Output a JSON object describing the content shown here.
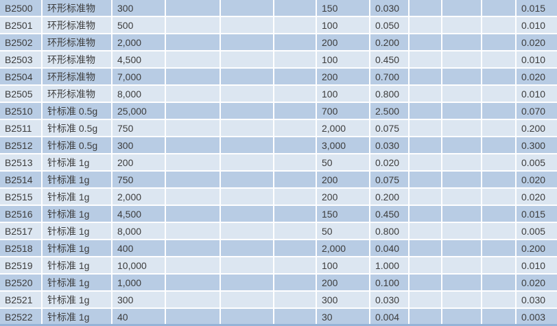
{
  "table": {
    "colors": {
      "row_band_dark": "#b8cce4",
      "row_band_light": "#dce6f1",
      "grid_line": "#ffffff",
      "bottom_border": "#95b3d7",
      "text": "#3c3c3c"
    },
    "rows": [
      [
        "B2500",
        "环形标准物",
        "300",
        "",
        "",
        "",
        "150",
        "0.030",
        "",
        "",
        "",
        "0.015"
      ],
      [
        "B2501",
        "环形标准物",
        "500",
        "",
        "",
        "",
        "100",
        "0.050",
        "",
        "",
        "",
        "0.010"
      ],
      [
        "B2502",
        "环形标准物",
        "2,000",
        "",
        "",
        "",
        "200",
        "0.200",
        "",
        "",
        "",
        "0.020"
      ],
      [
        "B2503",
        "环形标准物",
        "4,500",
        "",
        "",
        "",
        "100",
        "0.450",
        "",
        "",
        "",
        "0.010"
      ],
      [
        "B2504",
        "环形标准物",
        "7,000",
        "",
        "",
        "",
        "200",
        "0.700",
        "",
        "",
        "",
        "0.020"
      ],
      [
        "B2505",
        "环形标准物",
        "8,000",
        "",
        "",
        "",
        "100",
        "0.800",
        "",
        "",
        "",
        "0.010"
      ],
      [
        "B2510",
        "针标准 0.5g",
        "25,000",
        "",
        "",
        "",
        "700",
        "2.500",
        "",
        "",
        "",
        "0.070"
      ],
      [
        "B2511",
        "针标准 0.5g",
        "750",
        "",
        "",
        "",
        "2,000",
        "0.075",
        "",
        "",
        "",
        "0.200"
      ],
      [
        "B2512",
        "针标准 0.5g",
        "300",
        "",
        "",
        "",
        "3,000",
        "0.030",
        "",
        "",
        "",
        "0.300"
      ],
      [
        "B2513",
        "针标准 1g",
        "200",
        "",
        "",
        "",
        "50",
        "0.020",
        "",
        "",
        "",
        "0.005"
      ],
      [
        "B2514",
        "针标准 1g",
        "750",
        "",
        "",
        "",
        "200",
        "0.075",
        "",
        "",
        "",
        "0.020"
      ],
      [
        "B2515",
        "针标准 1g",
        "2,000",
        "",
        "",
        "",
        "200",
        "0.200",
        "",
        "",
        "",
        "0.020"
      ],
      [
        "B2516",
        "针标准 1g",
        "4,500",
        "",
        "",
        "",
        "150",
        "0.450",
        "",
        "",
        "",
        "0.015"
      ],
      [
        "B2517",
        "针标准 1g",
        "8,000",
        "",
        "",
        "",
        "50",
        "0.800",
        "",
        "",
        "",
        "0.005"
      ],
      [
        "B2518",
        "针标准 1g",
        "400",
        "",
        "",
        "",
        "2,000",
        "0.040",
        "",
        "",
        "",
        "0.200"
      ],
      [
        "B2519",
        "针标准 1g",
        "10,000",
        "",
        "",
        "",
        "100",
        "1.000",
        "",
        "",
        "",
        "0.010"
      ],
      [
        "B2520",
        "针标准 1g",
        "1,000",
        "",
        "",
        "",
        "200",
        "0.100",
        "",
        "",
        "",
        "0.020"
      ],
      [
        "B2521",
        "针标准 1g",
        "300",
        "",
        "",
        "",
        "300",
        "0.030",
        "",
        "",
        "",
        "0.030"
      ],
      [
        "B2522",
        "针标准 1g",
        "40",
        "",
        "",
        "",
        "30",
        "0.004",
        "",
        "",
        "",
        "0.003"
      ]
    ]
  }
}
